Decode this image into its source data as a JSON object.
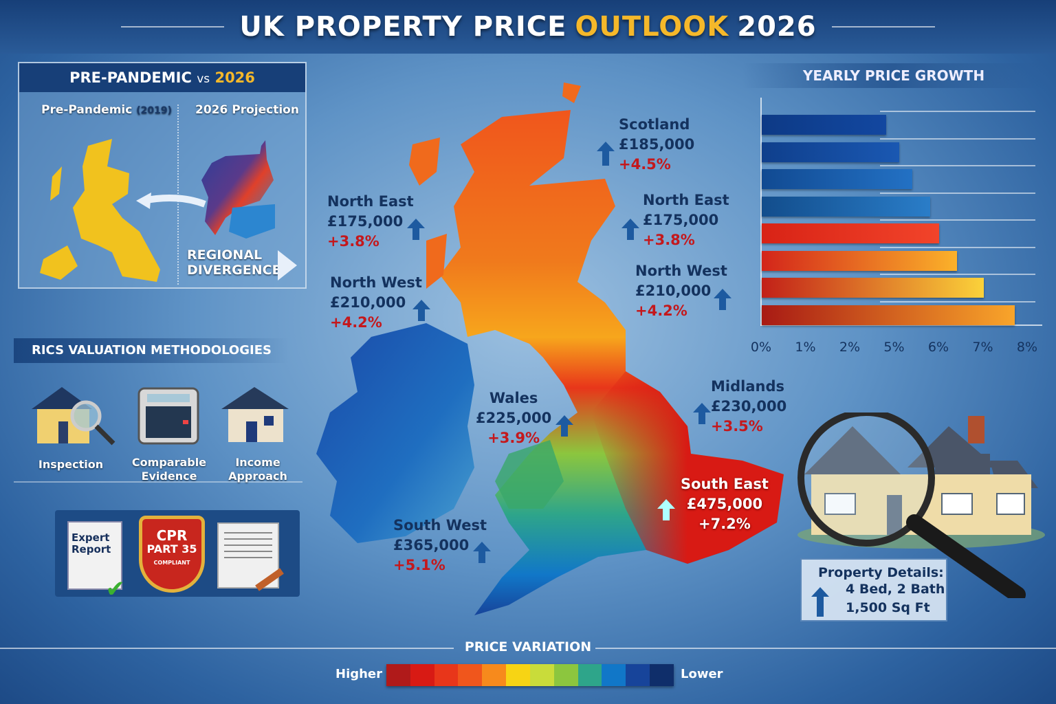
{
  "title": {
    "main": "UK PROPERTY PRICE",
    "accent": "OUTLOOK",
    "year": "2026"
  },
  "comparison": {
    "heading_a": "PRE-PANDEMIC",
    "heading_vs": "vs",
    "heading_b": "2026",
    "left_label": "Pre-Pandemic",
    "left_year": "(2019)",
    "right_label": "2026 Projection",
    "callout_line1": "REGIONAL",
    "callout_line2": "DIVERGENCE"
  },
  "rics": {
    "heading": "RICS VALUATION METHODOLOGIES",
    "methods": [
      {
        "label1": "Inspection",
        "label2": "",
        "icon": "house-magnifier-icon"
      },
      {
        "label1": "Comparable",
        "label2": "Evidence",
        "icon": "calculator-icon"
      },
      {
        "label1": "Income",
        "label2": "Approach",
        "icon": "house-icon"
      }
    ],
    "documents": {
      "expert_line1": "Expert",
      "expert_line2": "Report",
      "badge_line1": "CPR",
      "badge_line2": "PART 35",
      "badge_line3": "COMPLIANT",
      "third_icon": "legal-document-gavel-icon"
    }
  },
  "regions": [
    {
      "name": "Scotland",
      "price": "£185,000",
      "change": "+4.5%"
    },
    {
      "name": "North East",
      "price": "£175,000",
      "change": "+3.8%"
    },
    {
      "name": "North West",
      "price": "£210,000",
      "change": "+4.2%"
    },
    {
      "name": "North East",
      "price": "£175,000",
      "change": "+3.8%"
    },
    {
      "name": "North West",
      "price": "£210,000",
      "change": "+4.2%"
    },
    {
      "name": "Wales",
      "price": "£225,000",
      "change": "+3.9%"
    },
    {
      "name": "Midlands",
      "price": "£230,000",
      "change": "+3.5%"
    },
    {
      "name": "South East",
      "price": "£475,000",
      "change": "+7.2%"
    },
    {
      "name": "South West",
      "price": "£365,000",
      "change": "+5.1%"
    }
  ],
  "property": {
    "heading": "Property Details:",
    "line1": "4 Bed, 2 Bath",
    "line2": "1,500 Sq Ft"
  },
  "legend": {
    "title": "PRICE VARIATION",
    "high": "Higher",
    "low": "Lower",
    "colors": [
      "#b01a1a",
      "#d81a14",
      "#e8361a",
      "#f0561c",
      "#f78a1c",
      "#f7d414",
      "#c9dc3a",
      "#8cc63e",
      "#2ea58a",
      "#1177c8",
      "#17449a",
      "#0f2e6a"
    ]
  },
  "chart_data": {
    "type": "bar",
    "orientation": "horizontal",
    "title": "YEARLY PRICE GROWTH",
    "xlabel": "",
    "ylabel": "",
    "tick_labels": [
      "0%",
      "1%",
      "2%",
      "5%",
      "6%",
      "7%",
      "8%"
    ],
    "ticks": [
      0,
      1,
      2,
      5,
      6,
      7,
      8
    ],
    "values": [
      4.4,
      5.1,
      5.4,
      5.8,
      6.0,
      6.4,
      7.0,
      7.7
    ],
    "colors": [
      [
        "#0d3a86",
        "#1247a0"
      ],
      [
        "#0f3f8c",
        "#1a58b2"
      ],
      [
        "#114a92",
        "#2371c4"
      ],
      [
        "#124d8c",
        "#2a7dc8"
      ],
      [
        "#d82316",
        "#f2442a"
      ],
      [
        "#d3251a",
        "#fbb22a"
      ],
      [
        "#c22018",
        "#fbd23a"
      ],
      [
        "#a81a14",
        "#f9a52a"
      ]
    ],
    "grid": true
  }
}
